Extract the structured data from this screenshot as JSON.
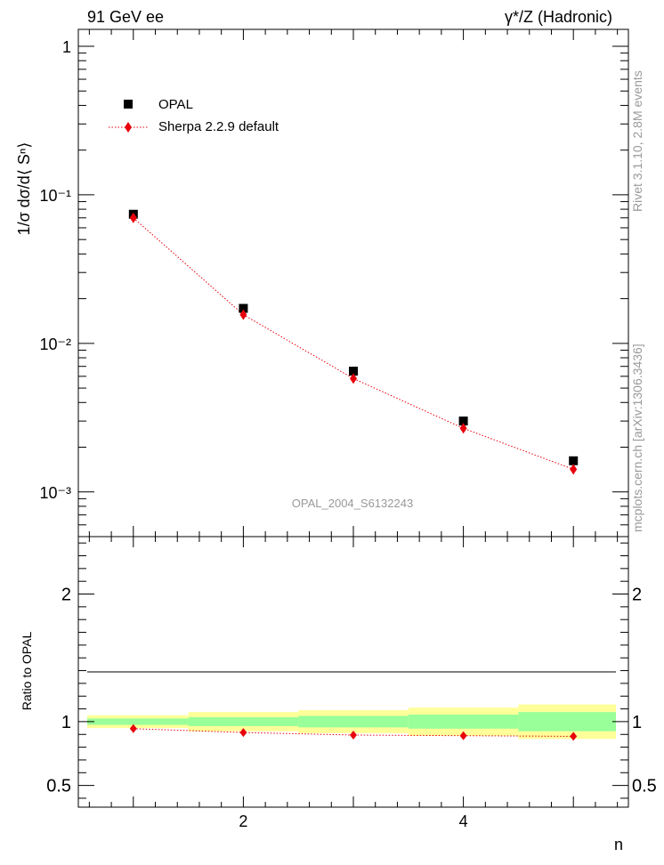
{
  "header": {
    "left": "91 GeV ee",
    "right": "γ*/Z (Hadronic)"
  },
  "side_text": {
    "rivet": "Rivet 3.1.10, 2.8M events",
    "mcplots": "mcplots.cern.ch [arXiv:1306.3436]"
  },
  "watermark": "OPAL_2004_S6132243",
  "chart_data": [
    {
      "type": "scatter",
      "ylabel": "1/σ dσ/d⟨ Sⁿ⟩",
      "yscale": "log",
      "ylim": [
        0.0005,
        1.3
      ],
      "xlim": [
        0.5,
        5.5
      ],
      "y_tick_labels": [
        "1",
        "10⁻¹",
        "10⁻²",
        "10⁻³"
      ],
      "legend": {
        "placement": "top-left",
        "entries": [
          "OPAL",
          "Sherpa 2.2.9 default"
        ]
      },
      "series": [
        {
          "name": "OPAL",
          "color": "#000000",
          "marker": "square",
          "x": [
            1,
            2,
            3,
            4,
            5
          ],
          "y": [
            0.074,
            0.0172,
            0.0065,
            0.003,
            0.00162
          ]
        },
        {
          "name": "Sherpa 2.2.9 default",
          "color": "#e8000b",
          "marker": "diamond",
          "line": "dotted",
          "x": [
            1,
            2,
            3,
            4,
            5
          ],
          "y": [
            0.07,
            0.0156,
            0.0058,
            0.00268,
            0.00142
          ]
        }
      ]
    },
    {
      "type": "scatter",
      "ylabel": "Ratio to OPAL",
      "xlabel": "n",
      "ylim": [
        0.33,
        2.45
      ],
      "xlim": [
        0.5,
        5.5
      ],
      "y_tick_labels": [
        "0.5",
        "1",
        "2"
      ],
      "x_tick_labels": [
        "2",
        "4"
      ],
      "bands": {
        "bins": [
          [
            0.5,
            1.5
          ],
          [
            1.5,
            2.5
          ],
          [
            2.5,
            3.5
          ],
          [
            3.5,
            4.5
          ],
          [
            4.5,
            5.5
          ]
        ],
        "stat": [
          0.025,
          0.035,
          0.045,
          0.055,
          0.075
        ],
        "total": [
          0.05,
          0.075,
          0.09,
          0.11,
          0.135
        ],
        "stat_color": "#99ff99",
        "total_color": "#ffff99"
      },
      "series": [
        {
          "name": "Sherpa 2.2.9 default",
          "color": "#e8000b",
          "marker": "diamond",
          "line": "dotted",
          "x": [
            1,
            2,
            3,
            4,
            5
          ],
          "y": [
            0.945,
            0.915,
            0.895,
            0.89,
            0.885
          ]
        }
      ]
    }
  ]
}
